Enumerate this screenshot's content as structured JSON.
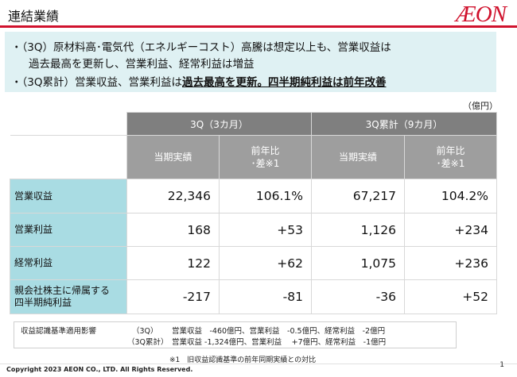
{
  "header": {
    "title": "連結業績",
    "logo_text": "ÆON"
  },
  "summary": {
    "line1": "・（3Q）原材料高･電気代（エネルギーコスト）高騰は想定以上も、営業収益は",
    "line2": "過去最高を更新し、営業利益、経常利益は増益",
    "line3_prefix": "・（3Q累計）営業収益、営業利益は",
    "line3_emphasis": "過去最高を更新。四半期純利益は前年改善"
  },
  "unit": "（億円）",
  "table": {
    "group_3q": "3Q（3カ月）",
    "group_3q_cum": "3Q累計（9カ月）",
    "col_actual": "当期実績",
    "col_yoy_l1": "前年比",
    "col_yoy_l2": "･差※1",
    "rows": [
      {
        "label": "営業収益",
        "q_actual": "22,346",
        "q_yoy": "106.1%",
        "c_actual": "67,217",
        "c_yoy": "104.2%"
      },
      {
        "label": "営業利益",
        "q_actual": "168",
        "q_yoy": "+53",
        "c_actual": "1,126",
        "c_yoy": "+234"
      },
      {
        "label": "経常利益",
        "q_actual": "122",
        "q_yoy": "+62",
        "c_actual": "1,075",
        "c_yoy": "+236"
      },
      {
        "label_l1": "親会社株主に帰属する",
        "label_l2": "四半期純利益",
        "q_actual": "-217",
        "q_yoy": "-81",
        "c_actual": "-36",
        "c_yoy": "+52"
      }
    ]
  },
  "impact": {
    "title": "収益認識基準適用影響",
    "r1_period": "（3Q）",
    "r1_text": "営業収益　-460億円、営業利益　-0.5億円、経常利益　-2億円",
    "r2_period": "（3Q累計）",
    "r2_text": "営業収益 -1,324億円、営業利益　 +7億円、経常利益　-1億円"
  },
  "footnote": "※1　旧収益認識基準の前年同期実績との対比",
  "footer": {
    "copyright": "Copyright 2023 AEON CO., LTD. All Rights Reserved.",
    "page": "1"
  }
}
